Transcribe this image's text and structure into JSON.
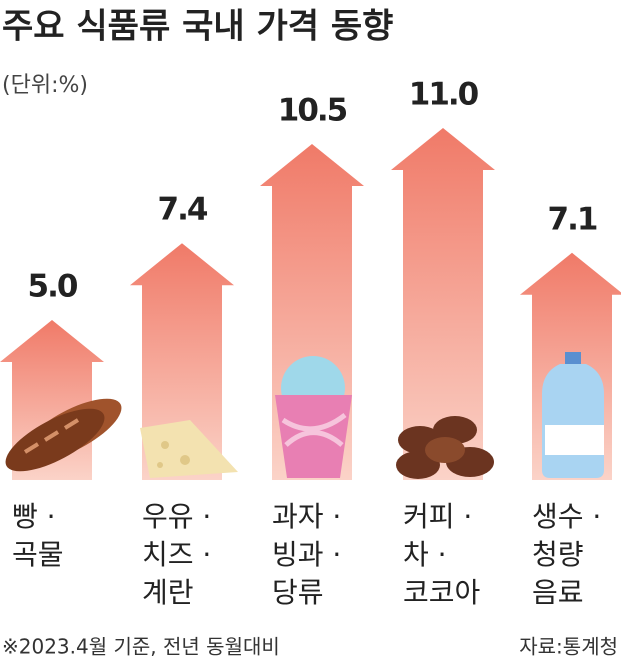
{
  "chart_data": {
    "type": "arrow-bar",
    "title": "주요 식품류 국내 가격 동향",
    "subtitle": "(단위:%)",
    "categories": [
      [
        "빵 ·",
        "곡물"
      ],
      [
        "우유 ·",
        "치즈 ·",
        "계란"
      ],
      [
        "과자 ·",
        "빙과 ·",
        "당류"
      ],
      [
        "커피 ·",
        "차 ·",
        "코코아"
      ],
      [
        "생수 ·",
        "청량",
        "음료"
      ]
    ],
    "values": [
      5.0,
      7.4,
      10.5,
      11.0,
      7.1
    ],
    "value_labels": [
      "5.0",
      "7.4",
      "10.5",
      "11.0",
      "7.1"
    ],
    "color": "#f28a78",
    "footnote": "※2023.4월 기준, 전년 동월대비",
    "source": "자료:통계청"
  }
}
